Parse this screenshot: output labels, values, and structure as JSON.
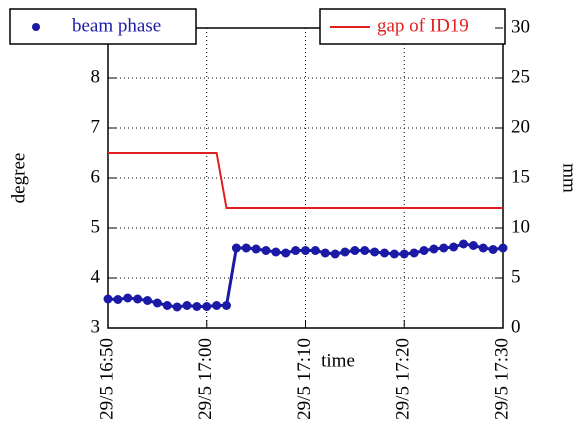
{
  "chart_data": {
    "type": "line",
    "x_label": "time",
    "y_label": "degree",
    "y2_label": "mm",
    "xlim": [
      "29/5 16:50",
      "29/5 17:30"
    ],
    "xticks": [
      "29/5 16:50",
      "29/5 17:00",
      "29/5 17:10",
      "29/5 17:20",
      "29/5 17:30"
    ],
    "ylim": [
      3,
      9
    ],
    "yticks": [
      3,
      4,
      5,
      6,
      7,
      8
    ],
    "y2lim": [
      0,
      30
    ],
    "y2ticks": [
      0,
      5,
      10,
      15,
      20,
      25,
      30
    ],
    "grid": true,
    "series": [
      {
        "name": "beam phase",
        "color": "#1a1aa6",
        "marker": "circle",
        "x": [
          "29/5 16:50",
          "29/5 16:51",
          "29/5 16:52",
          "29/5 16:53",
          "29/5 16:54",
          "29/5 16:55",
          "29/5 16:56",
          "29/5 16:57",
          "29/5 16:58",
          "29/5 16:59",
          "29/5 17:00",
          "29/5 17:01",
          "29/5 17:02",
          "29/5 17:03",
          "29/5 17:04",
          "29/5 17:05",
          "29/5 17:06",
          "29/5 17:07",
          "29/5 17:08",
          "29/5 17:09",
          "29/5 17:10",
          "29/5 17:11",
          "29/5 17:12",
          "29/5 17:13",
          "29/5 17:14",
          "29/5 17:15",
          "29/5 17:16",
          "29/5 17:17",
          "29/5 17:18",
          "29/5 17:19",
          "29/5 17:20",
          "29/5 17:21",
          "29/5 17:22",
          "29/5 17:23",
          "29/5 17:24",
          "29/5 17:25",
          "29/5 17:26",
          "29/5 17:27",
          "29/5 17:28",
          "29/5 17:29",
          "29/5 17:30"
        ],
        "values": [
          3.58,
          3.57,
          3.6,
          3.58,
          3.55,
          3.5,
          3.45,
          3.42,
          3.45,
          3.43,
          3.43,
          3.45,
          3.45,
          4.6,
          4.6,
          4.58,
          4.55,
          4.52,
          4.5,
          4.55,
          4.55,
          4.55,
          4.5,
          4.48,
          4.52,
          4.55,
          4.55,
          4.52,
          4.5,
          4.48,
          4.48,
          4.5,
          4.55,
          4.58,
          4.6,
          4.62,
          4.68,
          4.65,
          4.6,
          4.57,
          4.6
        ]
      },
      {
        "name": "gap of ID19",
        "color": "#e02020",
        "axis": "y2",
        "x": [
          "29/5 16:50",
          "29/5 17:01",
          "29/5 17:02",
          "29/5 17:30"
        ],
        "values": [
          17.5,
          17.5,
          12,
          12
        ]
      }
    ]
  }
}
